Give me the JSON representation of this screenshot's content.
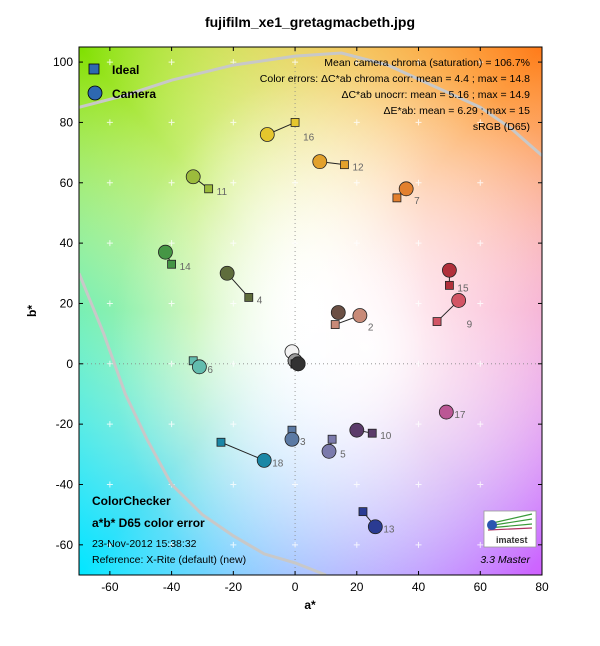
{
  "chart_data": {
    "type": "scatter",
    "title": "fujifilm_xe1_gretagmacbeth.jpg",
    "xlabel": "a*",
    "ylabel": "b*",
    "xlim": [
      -70,
      80
    ],
    "ylim": [
      -70,
      105
    ],
    "x_ticks": [
      "-60",
      "-40",
      "-20",
      "0",
      "20",
      "40",
      "60",
      "80"
    ],
    "y_ticks": [
      "100",
      "80",
      "60",
      "40",
      "20",
      "0",
      "-20",
      "-40",
      "-60"
    ],
    "grid": "gray dotted crosses",
    "legend": {
      "placement": "top-left",
      "entries": [
        {
          "label": "Ideal",
          "marker": "square",
          "color": "#2e68b0"
        },
        {
          "label": "Camera",
          "marker": "circle",
          "color": "#2e68b0"
        }
      ]
    },
    "info_lines": [
      "Mean camera chroma (saturation) = 106.7%",
      "Color errors: ΔC*ab chroma corr:  mean = 4.4 ;  max = 14.8",
      "ΔC*ab unocrr:  mean = 5.16 ;  max = 14.9",
      "ΔE*ab:  mean = 6.29 ;  max = 15",
      "sRGB (D65)"
    ],
    "points": [
      {
        "label": "2",
        "color": "#c88a78",
        "ideal": [
          13,
          13
        ],
        "camera": [
          21,
          16
        ]
      },
      {
        "label": "3",
        "color": "#5b7aa4",
        "ideal": [
          -1,
          -22
        ],
        "camera": [
          -1,
          -25
        ]
      },
      {
        "label": "4",
        "color": "#5f6d3c",
        "ideal": [
          -15,
          22
        ],
        "camera": [
          -22,
          30
        ]
      },
      {
        "label": "5",
        "color": "#7b7aac",
        "ideal": [
          12,
          -25
        ],
        "camera": [
          11,
          -29
        ]
      },
      {
        "label": "6",
        "color": "#62bcae",
        "ideal": [
          -33,
          1
        ],
        "camera": [
          -31,
          -1
        ]
      },
      {
        "label": "7",
        "color": "#e3802e",
        "ideal": [
          33,
          55
        ],
        "camera": [
          36,
          58
        ]
      },
      {
        "label": "9",
        "color": "#d25565",
        "ideal": [
          46,
          14
        ],
        "camera": [
          53,
          21
        ]
      },
      {
        "label": "10",
        "color": "#5b3b6a",
        "ideal": [
          25,
          -23
        ],
        "camera": [
          20,
          -22
        ]
      },
      {
        "label": "11",
        "color": "#9cbb3c",
        "ideal": [
          -28,
          58
        ],
        "camera": [
          -33,
          62
        ]
      },
      {
        "label": "12",
        "color": "#e2a12c",
        "ideal": [
          16,
          66
        ],
        "camera": [
          8,
          67
        ]
      },
      {
        "label": "13",
        "color": "#2a3b92",
        "ideal": [
          22,
          -49
        ],
        "camera": [
          26,
          -54
        ]
      },
      {
        "label": "14",
        "color": "#459645",
        "ideal": [
          -40,
          33
        ],
        "camera": [
          -42,
          37
        ]
      },
      {
        "label": "15",
        "color": "#b1303a",
        "ideal": [
          50,
          26
        ],
        "camera": [
          50,
          31
        ]
      },
      {
        "label": "16",
        "color": "#e5c62d",
        "ideal": [
          0,
          80
        ],
        "camera": [
          -9,
          76
        ]
      },
      {
        "label": "17",
        "color": "#bb5795",
        "ideal": [
          49,
          -16
        ],
        "camera": [
          49,
          -16
        ]
      },
      {
        "label": "18",
        "color": "#1b87a6",
        "ideal": [
          -24,
          -26
        ],
        "camera": [
          -10,
          -32
        ]
      },
      {
        "label": "",
        "color": "#6b4f44",
        "ideal": [
          14,
          17
        ],
        "camera": [
          14,
          17
        ]
      },
      {
        "label": "",
        "color": "#f2f2f2",
        "ideal": [
          0,
          0
        ],
        "camera": [
          -1,
          4
        ]
      },
      {
        "label": "",
        "color": "#c8c8c8",
        "ideal": [
          0,
          0
        ],
        "camera": [
          0,
          1
        ]
      },
      {
        "label": "",
        "color": "#9a9a9a",
        "ideal": [
          0,
          0
        ],
        "camera": [
          0,
          1
        ]
      },
      {
        "label": "",
        "color": "#646464",
        "ideal": [
          0,
          0
        ],
        "camera": [
          1,
          0
        ]
      },
      {
        "label": "",
        "color": "#323232",
        "ideal": [
          0,
          0
        ],
        "camera": [
          1,
          0
        ]
      }
    ],
    "gamut_boundary": [
      [
        -70,
        85
      ],
      [
        -55,
        89
      ],
      [
        -40,
        94
      ],
      [
        -20,
        99
      ],
      [
        0,
        102
      ],
      [
        15,
        103
      ],
      [
        30,
        99
      ],
      [
        45,
        92
      ],
      [
        60,
        85
      ],
      [
        70,
        78
      ],
      [
        80,
        69
      ]
    ],
    "gamut_boundary2": [
      [
        -70,
        30
      ],
      [
        -62,
        10
      ],
      [
        -55,
        -10
      ],
      [
        -48,
        -25
      ],
      [
        -40,
        -40
      ],
      [
        -30,
        -50
      ],
      [
        -20,
        -57
      ],
      [
        -10,
        -63
      ],
      [
        0,
        -66
      ],
      [
        10,
        -70
      ]
    ],
    "box_label": {
      "line1": "ColorChecker",
      "line2": "a*b* D65 color error",
      "line3": "23-Nov-2012 15:38:32",
      "line4": "Reference: X-Rite (default) (new)"
    },
    "version": "3.3  Master",
    "logo_text": "imatest"
  }
}
